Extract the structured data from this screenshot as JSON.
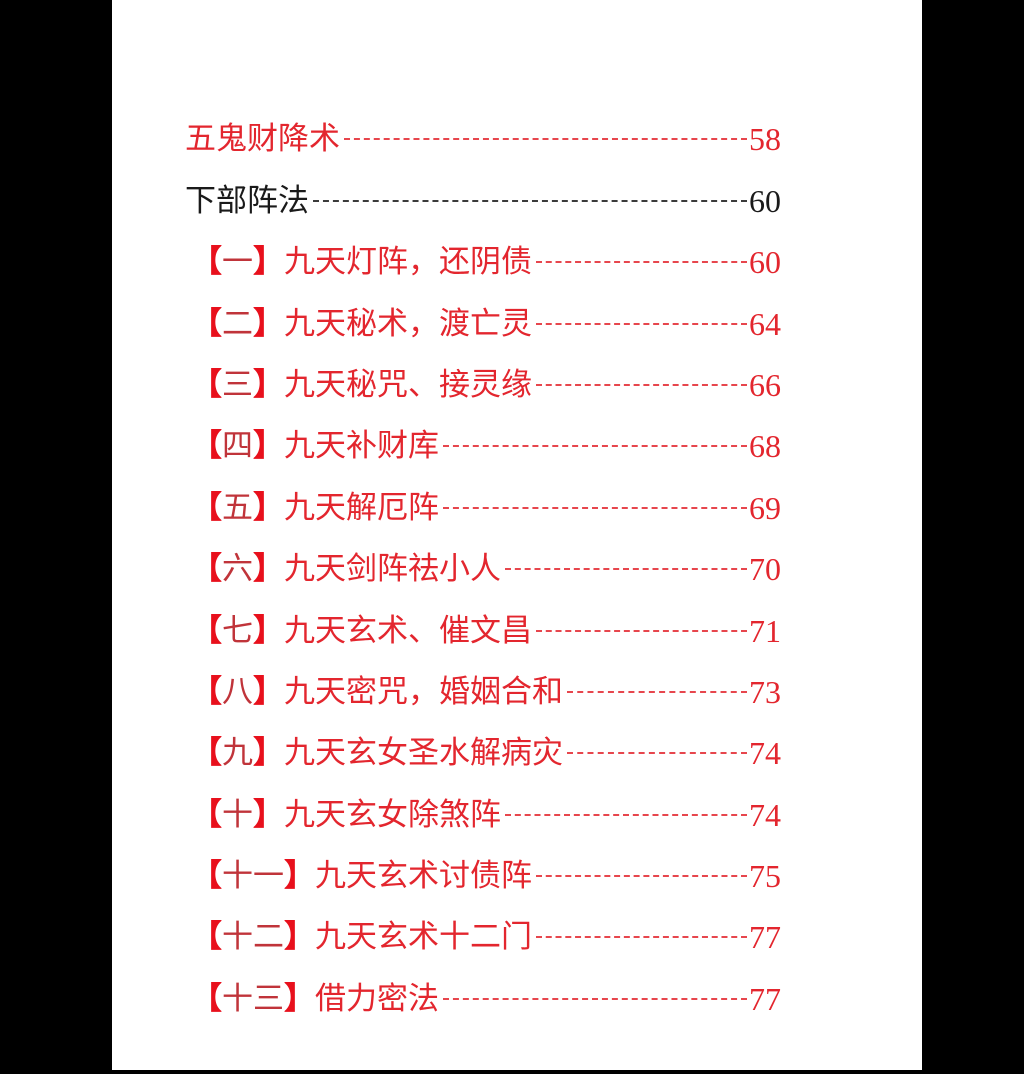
{
  "toc": {
    "entries": [
      {
        "prefix": "",
        "title": "五鬼财降术",
        "page": "58",
        "style": "red"
      },
      {
        "prefix": "",
        "title": "下部阵法",
        "page": "60",
        "style": "black"
      },
      {
        "prefix": "一",
        "title": "九天灯阵，还阴债",
        "page": "60",
        "style": "red"
      },
      {
        "prefix": "二",
        "title": "九天秘术，渡亡灵",
        "page": "64",
        "style": "red"
      },
      {
        "prefix": "三",
        "title": "九天秘咒、接灵缘",
        "page": "66",
        "style": "red"
      },
      {
        "prefix": "四",
        "title": "九天补财库",
        "page": "68",
        "style": "red"
      },
      {
        "prefix": "五",
        "title": "九天解厄阵",
        "page": "69",
        "style": "red"
      },
      {
        "prefix": "六",
        "title": "九天剑阵祛小人",
        "page": "70",
        "style": "red"
      },
      {
        "prefix": "七",
        "title": "九天玄术、催文昌",
        "page": "71",
        "style": "red"
      },
      {
        "prefix": "八",
        "title": "九天密咒，婚姻合和",
        "page": "73",
        "style": "red"
      },
      {
        "prefix": "九",
        "title": "九天玄女圣水解病灾",
        "page": "74",
        "style": "red"
      },
      {
        "prefix": "十",
        "title": "九天玄女除煞阵",
        "page": "74",
        "style": "red"
      },
      {
        "prefix": "十一",
        "title": "九天玄术讨债阵",
        "page": "75",
        "style": "red"
      },
      {
        "prefix": "十二",
        "title": "九天玄术十二门",
        "page": "77",
        "style": "red"
      },
      {
        "prefix": "十三",
        "title": "借力密法",
        "page": "77",
        "style": "red"
      }
    ],
    "bracket_open": "【",
    "bracket_close": "】"
  },
  "colors": {
    "red": "#e3262e",
    "black": "#1a1a1a",
    "background": "#000000",
    "page": "#ffffff"
  }
}
